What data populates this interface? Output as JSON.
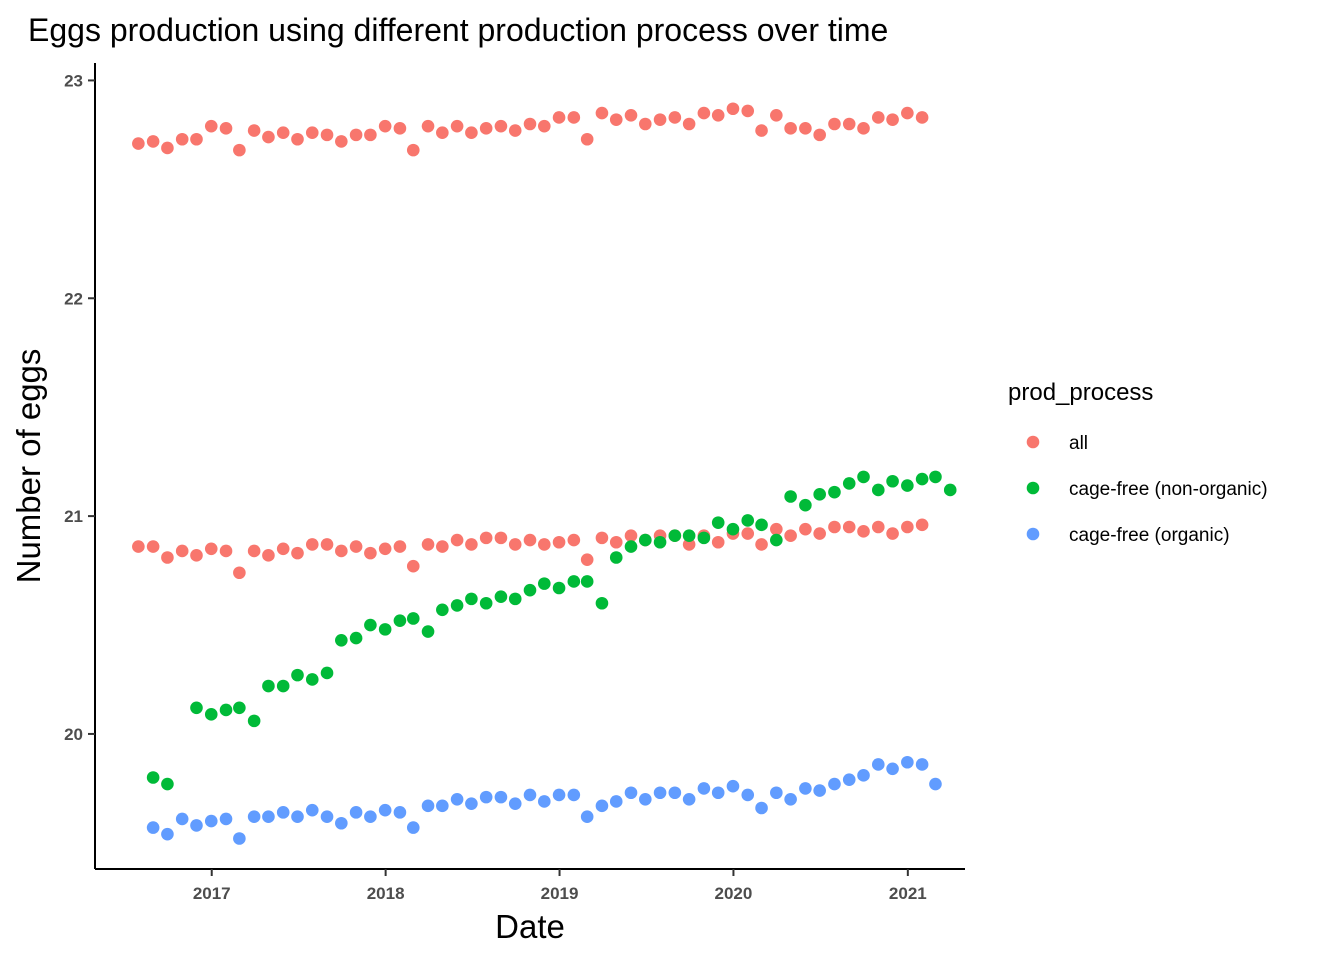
{
  "chart_data": {
    "type": "scatter",
    "title": "Eggs production using different production process over time",
    "xlabel": "Date",
    "ylabel": "Number of eggs",
    "x_type": "date",
    "xlim": [
      "2016-05-01",
      "2021-05-01"
    ],
    "ylim": [
      19.38,
      23.08
    ],
    "x_ticks": [
      {
        "date": "2017-01-01",
        "label": "2017"
      },
      {
        "date": "2018-01-01",
        "label": "2018"
      },
      {
        "date": "2019-01-01",
        "label": "2019"
      },
      {
        "date": "2020-01-01",
        "label": "2020"
      },
      {
        "date": "2021-01-01",
        "label": "2021"
      }
    ],
    "y_ticks": [
      20,
      21,
      22,
      23
    ],
    "grid": false,
    "legend": {
      "title": "prod_process",
      "position": "right"
    },
    "series": [
      {
        "name": "all",
        "color": "#F8766D",
        "points": [
          [
            "2016-07-31",
            22.71
          ],
          [
            "2016-08-31",
            22.72
          ],
          [
            "2016-09-30",
            22.69
          ],
          [
            "2016-10-31",
            22.73
          ],
          [
            "2016-11-30",
            22.73
          ],
          [
            "2016-12-31",
            22.79
          ],
          [
            "2017-01-31",
            22.78
          ],
          [
            "2017-02-28",
            22.68
          ],
          [
            "2017-03-31",
            22.77
          ],
          [
            "2017-04-30",
            22.74
          ],
          [
            "2017-05-31",
            22.76
          ],
          [
            "2017-06-30",
            22.73
          ],
          [
            "2017-07-31",
            22.76
          ],
          [
            "2017-08-31",
            22.75
          ],
          [
            "2017-09-30",
            22.72
          ],
          [
            "2017-10-31",
            22.75
          ],
          [
            "2017-11-30",
            22.75
          ],
          [
            "2017-12-31",
            22.79
          ],
          [
            "2018-01-31",
            22.78
          ],
          [
            "2018-02-28",
            22.68
          ],
          [
            "2018-03-31",
            22.79
          ],
          [
            "2018-04-30",
            22.76
          ],
          [
            "2018-05-31",
            22.79
          ],
          [
            "2018-06-30",
            22.76
          ],
          [
            "2018-07-31",
            22.78
          ],
          [
            "2018-08-31",
            22.79
          ],
          [
            "2018-09-30",
            22.77
          ],
          [
            "2018-10-31",
            22.8
          ],
          [
            "2018-11-30",
            22.79
          ],
          [
            "2018-12-31",
            22.83
          ],
          [
            "2019-01-31",
            22.83
          ],
          [
            "2019-02-28",
            22.73
          ],
          [
            "2019-03-31",
            22.85
          ],
          [
            "2019-04-30",
            22.82
          ],
          [
            "2019-05-31",
            22.84
          ],
          [
            "2019-06-30",
            22.8
          ],
          [
            "2019-07-31",
            22.82
          ],
          [
            "2019-08-31",
            22.83
          ],
          [
            "2019-09-30",
            22.8
          ],
          [
            "2019-10-31",
            22.85
          ],
          [
            "2019-11-30",
            22.84
          ],
          [
            "2019-12-31",
            22.87
          ],
          [
            "2020-01-31",
            22.86
          ],
          [
            "2020-02-29",
            22.77
          ],
          [
            "2020-03-31",
            22.84
          ],
          [
            "2020-04-30",
            22.78
          ],
          [
            "2020-05-31",
            22.78
          ],
          [
            "2020-06-30",
            22.75
          ],
          [
            "2020-07-31",
            22.8
          ],
          [
            "2020-08-31",
            22.8
          ],
          [
            "2020-09-30",
            22.78
          ],
          [
            "2020-10-31",
            22.83
          ],
          [
            "2020-11-30",
            22.82
          ],
          [
            "2020-12-31",
            22.85
          ],
          [
            "2021-01-31",
            22.83
          ],
          [
            "2016-07-31",
            20.86
          ],
          [
            "2016-08-31",
            20.86
          ],
          [
            "2016-09-30",
            20.81
          ],
          [
            "2016-10-31",
            20.84
          ],
          [
            "2016-11-30",
            20.82
          ],
          [
            "2016-12-31",
            20.85
          ],
          [
            "2017-01-31",
            20.84
          ],
          [
            "2017-02-28",
            20.74
          ],
          [
            "2017-03-31",
            20.84
          ],
          [
            "2017-04-30",
            20.82
          ],
          [
            "2017-05-31",
            20.85
          ],
          [
            "2017-06-30",
            20.83
          ],
          [
            "2017-07-31",
            20.87
          ],
          [
            "2017-08-31",
            20.87
          ],
          [
            "2017-09-30",
            20.84
          ],
          [
            "2017-10-31",
            20.86
          ],
          [
            "2017-11-30",
            20.83
          ],
          [
            "2017-12-31",
            20.85
          ],
          [
            "2018-01-31",
            20.86
          ],
          [
            "2018-02-28",
            20.77
          ],
          [
            "2018-03-31",
            20.87
          ],
          [
            "2018-04-30",
            20.86
          ],
          [
            "2018-05-31",
            20.89
          ],
          [
            "2018-06-30",
            20.87
          ],
          [
            "2018-07-31",
            20.9
          ],
          [
            "2018-08-31",
            20.9
          ],
          [
            "2018-09-30",
            20.87
          ],
          [
            "2018-10-31",
            20.89
          ],
          [
            "2018-11-30",
            20.87
          ],
          [
            "2018-12-31",
            20.88
          ],
          [
            "2019-01-31",
            20.89
          ],
          [
            "2019-02-28",
            20.8
          ],
          [
            "2019-03-31",
            20.9
          ],
          [
            "2019-04-30",
            20.88
          ],
          [
            "2019-05-31",
            20.91
          ],
          [
            "2019-06-30",
            20.89
          ],
          [
            "2019-07-31",
            20.91
          ],
          [
            "2019-08-31",
            20.91
          ],
          [
            "2019-09-30",
            20.87
          ],
          [
            "2019-10-31",
            20.91
          ],
          [
            "2019-11-30",
            20.88
          ],
          [
            "2019-12-31",
            20.92
          ],
          [
            "2020-01-31",
            20.92
          ],
          [
            "2020-02-29",
            20.87
          ],
          [
            "2020-03-31",
            20.94
          ],
          [
            "2020-04-30",
            20.91
          ],
          [
            "2020-05-31",
            20.94
          ],
          [
            "2020-06-30",
            20.92
          ],
          [
            "2020-07-31",
            20.95
          ],
          [
            "2020-08-31",
            20.95
          ],
          [
            "2020-09-30",
            20.93
          ],
          [
            "2020-10-31",
            20.95
          ],
          [
            "2020-11-30",
            20.92
          ],
          [
            "2020-12-31",
            20.95
          ],
          [
            "2021-01-31",
            20.96
          ]
        ]
      },
      {
        "name": "cage-free (non-organic)",
        "color": "#00BA38",
        "points": [
          [
            "2016-08-31",
            19.8
          ],
          [
            "2016-09-30",
            19.77
          ],
          [
            "2016-11-30",
            20.12
          ],
          [
            "2016-12-31",
            20.09
          ],
          [
            "2017-01-31",
            20.11
          ],
          [
            "2017-02-28",
            20.12
          ],
          [
            "2017-03-31",
            20.06
          ],
          [
            "2017-04-30",
            20.22
          ],
          [
            "2017-05-31",
            20.22
          ],
          [
            "2017-06-30",
            20.27
          ],
          [
            "2017-07-31",
            20.25
          ],
          [
            "2017-08-31",
            20.28
          ],
          [
            "2017-09-30",
            20.43
          ],
          [
            "2017-10-31",
            20.44
          ],
          [
            "2017-11-30",
            20.5
          ],
          [
            "2017-12-31",
            20.48
          ],
          [
            "2018-01-31",
            20.52
          ],
          [
            "2018-02-28",
            20.53
          ],
          [
            "2018-03-31",
            20.47
          ],
          [
            "2018-04-30",
            20.57
          ],
          [
            "2018-05-31",
            20.59
          ],
          [
            "2018-06-30",
            20.62
          ],
          [
            "2018-07-31",
            20.6
          ],
          [
            "2018-08-31",
            20.63
          ],
          [
            "2018-09-30",
            20.62
          ],
          [
            "2018-10-31",
            20.66
          ],
          [
            "2018-11-30",
            20.69
          ],
          [
            "2018-12-31",
            20.67
          ],
          [
            "2019-01-31",
            20.7
          ],
          [
            "2019-02-28",
            20.7
          ],
          [
            "2019-03-31",
            20.6
          ],
          [
            "2019-04-30",
            20.81
          ],
          [
            "2019-05-31",
            20.86
          ],
          [
            "2019-06-30",
            20.89
          ],
          [
            "2019-07-31",
            20.88
          ],
          [
            "2019-08-31",
            20.91
          ],
          [
            "2019-09-30",
            20.91
          ],
          [
            "2019-10-31",
            20.9
          ],
          [
            "2019-11-30",
            20.97
          ],
          [
            "2019-12-31",
            20.94
          ],
          [
            "2020-01-31",
            20.98
          ],
          [
            "2020-02-29",
            20.96
          ],
          [
            "2020-03-31",
            20.89
          ],
          [
            "2020-04-30",
            21.09
          ],
          [
            "2020-05-31",
            21.05
          ],
          [
            "2020-06-30",
            21.1
          ],
          [
            "2020-07-31",
            21.11
          ],
          [
            "2020-08-31",
            21.15
          ],
          [
            "2020-09-30",
            21.18
          ],
          [
            "2020-10-31",
            21.12
          ],
          [
            "2020-11-30",
            21.16
          ],
          [
            "2020-12-31",
            21.14
          ],
          [
            "2021-01-31",
            21.17
          ],
          [
            "2021-02-28",
            21.18
          ],
          [
            "2021-03-31",
            21.12
          ]
        ]
      },
      {
        "name": "cage-free (organic)",
        "color": "#619CFF",
        "points": [
          [
            "2016-08-31",
            19.57
          ],
          [
            "2016-09-30",
            19.54
          ],
          [
            "2016-10-31",
            19.61
          ],
          [
            "2016-11-30",
            19.58
          ],
          [
            "2016-12-31",
            19.6
          ],
          [
            "2017-01-31",
            19.61
          ],
          [
            "2017-02-28",
            19.52
          ],
          [
            "2017-03-31",
            19.62
          ],
          [
            "2017-04-30",
            19.62
          ],
          [
            "2017-05-31",
            19.64
          ],
          [
            "2017-06-30",
            19.62
          ],
          [
            "2017-07-31",
            19.65
          ],
          [
            "2017-08-31",
            19.62
          ],
          [
            "2017-09-30",
            19.59
          ],
          [
            "2017-10-31",
            19.64
          ],
          [
            "2017-11-30",
            19.62
          ],
          [
            "2017-12-31",
            19.65
          ],
          [
            "2018-01-31",
            19.64
          ],
          [
            "2018-02-28",
            19.57
          ],
          [
            "2018-03-31",
            19.67
          ],
          [
            "2018-04-30",
            19.67
          ],
          [
            "2018-05-31",
            19.7
          ],
          [
            "2018-06-30",
            19.68
          ],
          [
            "2018-07-31",
            19.71
          ],
          [
            "2018-08-31",
            19.71
          ],
          [
            "2018-09-30",
            19.68
          ],
          [
            "2018-10-31",
            19.72
          ],
          [
            "2018-11-30",
            19.69
          ],
          [
            "2018-12-31",
            19.72
          ],
          [
            "2019-01-31",
            19.72
          ],
          [
            "2019-02-28",
            19.62
          ],
          [
            "2019-03-31",
            19.67
          ],
          [
            "2019-04-30",
            19.69
          ],
          [
            "2019-05-31",
            19.73
          ],
          [
            "2019-06-30",
            19.7
          ],
          [
            "2019-07-31",
            19.73
          ],
          [
            "2019-08-31",
            19.73
          ],
          [
            "2019-09-30",
            19.7
          ],
          [
            "2019-10-31",
            19.75
          ],
          [
            "2019-11-30",
            19.73
          ],
          [
            "2019-12-31",
            19.76
          ],
          [
            "2020-01-31",
            19.72
          ],
          [
            "2020-02-29",
            19.66
          ],
          [
            "2020-03-31",
            19.73
          ],
          [
            "2020-04-30",
            19.7
          ],
          [
            "2020-05-31",
            19.75
          ],
          [
            "2020-06-30",
            19.74
          ],
          [
            "2020-07-31",
            19.77
          ],
          [
            "2020-08-31",
            19.79
          ],
          [
            "2020-09-30",
            19.81
          ],
          [
            "2020-10-31",
            19.86
          ],
          [
            "2020-11-30",
            19.84
          ],
          [
            "2020-12-31",
            19.87
          ],
          [
            "2021-01-31",
            19.86
          ],
          [
            "2021-02-28",
            19.77
          ]
        ]
      }
    ]
  }
}
